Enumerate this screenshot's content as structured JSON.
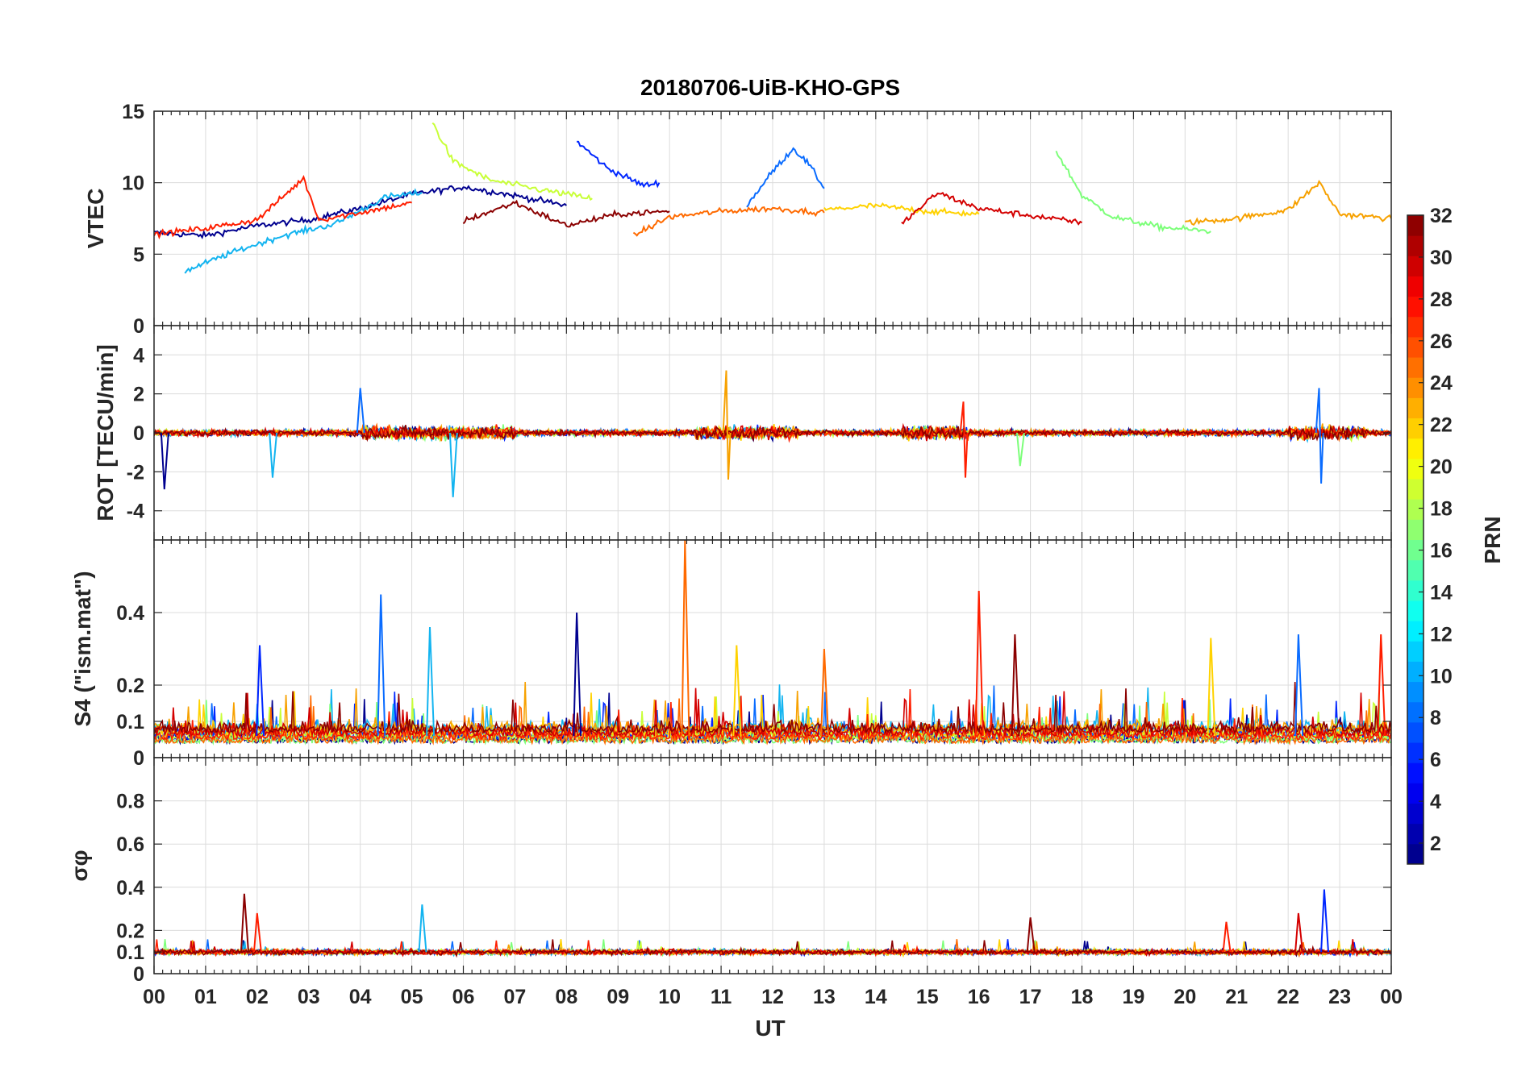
{
  "title": "20180706-UiB-KHO-GPS",
  "xlabel": "UT",
  "x_tick_labels": [
    "00",
    "01",
    "02",
    "03",
    "04",
    "05",
    "06",
    "07",
    "08",
    "09",
    "10",
    "11",
    "12",
    "13",
    "14",
    "15",
    "16",
    "17",
    "18",
    "19",
    "20",
    "21",
    "22",
    "23",
    "00"
  ],
  "colorbar": {
    "label": "PRN",
    "range": [
      1,
      32
    ],
    "ticks": [
      "2",
      "4",
      "6",
      "8",
      "10",
      "12",
      "14",
      "16",
      "18",
      "20",
      "22",
      "24",
      "26",
      "28",
      "30",
      "32"
    ],
    "colormap": "jet",
    "levels": 32
  },
  "series_colors": [
    "#00008f",
    "#0026ff",
    "#0a6cff",
    "#13b4f0",
    "#7dff7a",
    "#c8ff37",
    "#ffd200",
    "#f7a100",
    "#ff6a00",
    "#ff1e00",
    "#d40000",
    "#8b0000"
  ],
  "chart_data": [
    {
      "type": "line",
      "ylabel": "VTEC",
      "xlim": [
        0,
        24
      ],
      "ylim": [
        0,
        15
      ],
      "yticks": [
        "0",
        "5",
        "10",
        "15"
      ],
      "grid": true,
      "series": [
        {
          "color": "#00008f",
          "x": [
            0,
            1,
            2,
            3,
            4,
            5,
            6,
            7,
            8
          ],
          "values": [
            6.5,
            6.3,
            7.0,
            7.4,
            8.2,
            9.2,
            9.7,
            9.1,
            8.4
          ]
        },
        {
          "color": "#0026ff",
          "x": [
            8.2,
            8.8,
            9.5,
            9.8
          ],
          "values": [
            12.9,
            11.0,
            9.8,
            10.0
          ]
        },
        {
          "color": "#0a6cff",
          "x": [
            11.5,
            12.0,
            12.4,
            12.7,
            13.0
          ],
          "values": [
            8.4,
            10.8,
            12.4,
            11.3,
            9.6
          ]
        },
        {
          "color": "#13b4f0",
          "x": [
            0.6,
            1.5,
            2.5,
            3.5,
            4.5,
            5.2
          ],
          "values": [
            3.8,
            5.1,
            6.3,
            7.1,
            9.0,
            9.3
          ]
        },
        {
          "color": "#7dff7a",
          "x": [
            17.5,
            18.0,
            18.6,
            19.5,
            20.5
          ],
          "values": [
            12.2,
            9.1,
            7.6,
            6.9,
            6.6
          ]
        },
        {
          "color": "#c8ff37",
          "x": [
            5.4,
            5.8,
            6.5,
            7.5,
            8.5
          ],
          "values": [
            14.2,
            11.5,
            10.2,
            9.5,
            8.9
          ]
        },
        {
          "color": "#ffd200",
          "x": [
            13.0,
            14.0,
            15.0,
            16.0
          ],
          "values": [
            8.1,
            8.4,
            8.0,
            7.8
          ]
        },
        {
          "color": "#f7a100",
          "x": [
            20.0,
            21.0,
            22.0,
            22.6,
            23.0,
            24.0
          ],
          "values": [
            7.2,
            7.5,
            8.1,
            10.0,
            7.8,
            7.5
          ]
        },
        {
          "color": "#ff6a00",
          "x": [
            9.3,
            10.0,
            11.0,
            12.0,
            13.0
          ],
          "values": [
            6.3,
            7.6,
            8.0,
            8.2,
            7.9
          ]
        },
        {
          "color": "#ff1e00",
          "x": [
            0,
            1,
            2,
            2.9,
            3.2,
            4,
            5
          ],
          "values": [
            6.4,
            6.8,
            7.4,
            10.3,
            7.4,
            7.9,
            8.6
          ]
        },
        {
          "color": "#d40000",
          "x": [
            14.5,
            15.2,
            16.0,
            17.0,
            18.0
          ],
          "values": [
            7.1,
            9.3,
            8.2,
            7.7,
            7.2
          ]
        },
        {
          "color": "#8b0000",
          "x": [
            6.0,
            7.0,
            8.0,
            9.0,
            10.0
          ],
          "values": [
            7.3,
            8.6,
            7.0,
            7.8,
            8.0
          ]
        }
      ]
    },
    {
      "type": "line",
      "ylabel": "ROT [TECU/min]",
      "xlim": [
        0,
        24
      ],
      "ylim": [
        -5.5,
        5.5
      ],
      "yticks": [
        "-4",
        "-2",
        "0",
        "2",
        "4"
      ],
      "grid": true,
      "spikes": [
        {
          "color": "#00008f",
          "x": 0.2,
          "values": [
            -2.9
          ]
        },
        {
          "color": "#0a6cff",
          "x": 4.0,
          "values": [
            2.3
          ]
        },
        {
          "color": "#13b4f0",
          "x": 5.8,
          "values": [
            -3.3
          ]
        },
        {
          "color": "#13b4f0",
          "x": 2.3,
          "values": [
            -2.3
          ]
        },
        {
          "color": "#f7a100",
          "x": 11.1,
          "values": [
            3.2,
            -2.4
          ]
        },
        {
          "color": "#ff1e00",
          "x": 15.7,
          "values": [
            1.6,
            -2.3
          ]
        },
        {
          "color": "#0a6cff",
          "x": 22.6,
          "values": [
            2.3,
            -2.6
          ]
        },
        {
          "color": "#7dff7a",
          "x": 16.8,
          "values": [
            -1.7
          ]
        }
      ]
    },
    {
      "type": "line",
      "ylabel": "S4 (\"ism.mat\")",
      "xlim": [
        0,
        24
      ],
      "ylim": [
        0,
        0.6
      ],
      "yticks": [
        "0",
        "0.1",
        "0.2",
        "0.4"
      ],
      "grid": true,
      "spikes": [
        {
          "color": "#ff6a00",
          "x": 10.3,
          "values": [
            0.6
          ]
        },
        {
          "color": "#0a6cff",
          "x": 4.4,
          "values": [
            0.45
          ]
        },
        {
          "color": "#ff1e00",
          "x": 16.0,
          "values": [
            0.46
          ]
        },
        {
          "color": "#00008f",
          "x": 8.2,
          "values": [
            0.4
          ]
        },
        {
          "color": "#13b4f0",
          "x": 5.35,
          "values": [
            0.36
          ]
        },
        {
          "color": "#8b0000",
          "x": 16.7,
          "values": [
            0.34
          ]
        },
        {
          "color": "#0a6cff",
          "x": 22.2,
          "values": [
            0.34
          ]
        },
        {
          "color": "#ff1e00",
          "x": 23.8,
          "values": [
            0.34
          ]
        },
        {
          "color": "#ffd200",
          "x": 20.5,
          "values": [
            0.33
          ]
        },
        {
          "color": "#0026ff",
          "x": 2.05,
          "values": [
            0.31
          ]
        },
        {
          "color": "#ffd200",
          "x": 11.3,
          "values": [
            0.31
          ]
        },
        {
          "color": "#ff6a00",
          "x": 13.0,
          "values": [
            0.3
          ]
        }
      ]
    },
    {
      "type": "line",
      "ylabel": "σφ",
      "xlim": [
        0,
        24
      ],
      "ylim": [
        0,
        1
      ],
      "yticks": [
        "0",
        "0.1",
        "0.2",
        "0.4",
        "0.6",
        "0.8"
      ],
      "grid": true,
      "spikes": [
        {
          "color": "#8b0000",
          "x": 1.75,
          "values": [
            0.37
          ]
        },
        {
          "color": "#0026ff",
          "x": 22.7,
          "values": [
            0.39
          ]
        },
        {
          "color": "#13b4f0",
          "x": 5.2,
          "values": [
            0.32
          ]
        },
        {
          "color": "#d40000",
          "x": 22.2,
          "values": [
            0.28
          ]
        },
        {
          "color": "#ff1e00",
          "x": 2.0,
          "values": [
            0.28
          ]
        },
        {
          "color": "#8b0000",
          "x": 17.0,
          "values": [
            0.26
          ]
        },
        {
          "color": "#ff1e00",
          "x": 20.8,
          "values": [
            0.24
          ]
        }
      ]
    }
  ]
}
